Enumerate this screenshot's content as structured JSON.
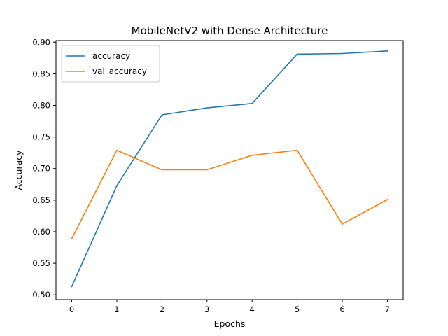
{
  "chart_data": {
    "type": "line",
    "title": "MobileNetV2 with Dense Architecture",
    "xlabel": "Epochs",
    "ylabel": "Accuracy",
    "x": [
      0,
      1,
      2,
      3,
      4,
      5,
      6,
      7
    ],
    "xticks": [
      "0",
      "1",
      "2",
      "3",
      "4",
      "5",
      "6",
      "7"
    ],
    "yticks": [
      "0.50",
      "0.55",
      "0.60",
      "0.65",
      "0.70",
      "0.75",
      "0.80",
      "0.85",
      "0.90"
    ],
    "xlim": [
      -0.35,
      7.35
    ],
    "ylim": [
      0.4925,
      0.9025
    ],
    "grid": false,
    "legend_position": "top-left",
    "series": [
      {
        "name": "accuracy",
        "color": "#1f77b4",
        "values": [
          0.513,
          0.673,
          0.785,
          0.796,
          0.803,
          0.881,
          0.882,
          0.886
        ]
      },
      {
        "name": "val_accuracy",
        "color": "#ff7f0e",
        "values": [
          0.589,
          0.729,
          0.698,
          0.698,
          0.721,
          0.729,
          0.612,
          0.651
        ]
      }
    ]
  }
}
